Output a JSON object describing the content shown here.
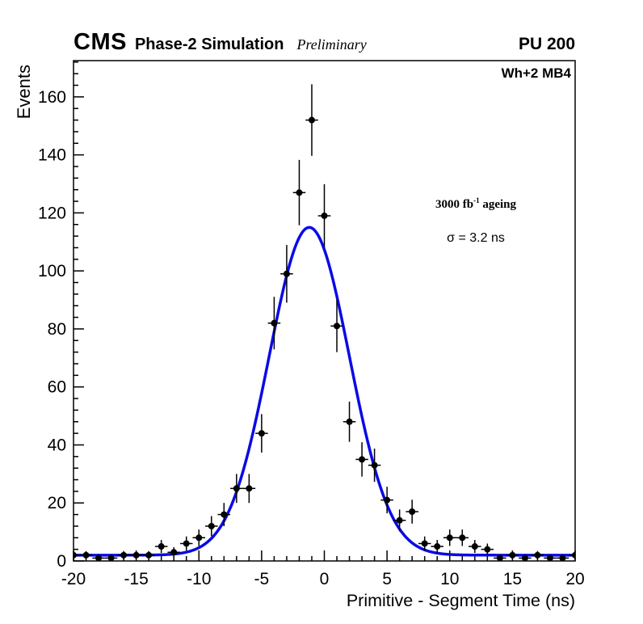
{
  "header": {
    "experiment": "CMS",
    "subtitle": "Phase-2 Simulation",
    "preliminary": "Preliminary",
    "pileup": "PU 200"
  },
  "annotations": {
    "channel": "Wh+2 MB4",
    "lumi_prefix": "3000 fb",
    "lumi_sup": "-1",
    "lumi_suffix": " ageing",
    "sigma": "σ = 3.2 ns"
  },
  "colors": {
    "marker": "#000000",
    "fit": "#0a0ae6",
    "frame": "#000000",
    "background": "#ffffff"
  },
  "chart_data": {
    "type": "scatter",
    "title": "",
    "xlabel": "Primitive - Segment Time (ns)",
    "ylabel": "Events",
    "xlim": [
      -20,
      20
    ],
    "ylim": [
      0,
      172.5
    ],
    "x_ticks": [
      -20,
      -15,
      -10,
      -5,
      0,
      5,
      10,
      15,
      20
    ],
    "y_ticks": [
      0,
      20,
      40,
      60,
      80,
      100,
      120,
      140,
      160
    ],
    "x_minor_step": 1,
    "y_minor_step": 4,
    "grid": false,
    "legend": "none",
    "series": [
      {
        "name": "data",
        "type": "scatter",
        "marker": "filled-circle",
        "color": "#000000",
        "x": [
          -20,
          -19,
          -18,
          -17,
          -16,
          -15,
          -14,
          -13,
          -12,
          -11,
          -10,
          -9,
          -8,
          -7,
          -6,
          -5,
          -4,
          -3,
          -2,
          -1,
          0,
          1,
          2,
          3,
          4,
          5,
          6,
          7,
          8,
          9,
          10,
          11,
          12,
          13,
          14,
          15,
          16,
          17,
          18,
          19,
          20
        ],
        "y": [
          2,
          2,
          1,
          1,
          2,
          2,
          2,
          5,
          3,
          6,
          8,
          12,
          16,
          25,
          25,
          44,
          82,
          99,
          127,
          152,
          119,
          81,
          48,
          35,
          33,
          21,
          14,
          17,
          6,
          5,
          8,
          8,
          5,
          4,
          1,
          2,
          1,
          2,
          1,
          1,
          2
        ],
        "x_err": 0.5,
        "y_err": "sqrt(y)"
      },
      {
        "name": "gaussian-fit",
        "type": "line",
        "color": "#0a0ae6",
        "width": 3.5,
        "model": "baseline + A*exp(-0.5*((x-mean)/sigma)^2)",
        "A": 113,
        "mean": -1.2,
        "sigma": 3.2,
        "baseline": 2
      }
    ]
  }
}
